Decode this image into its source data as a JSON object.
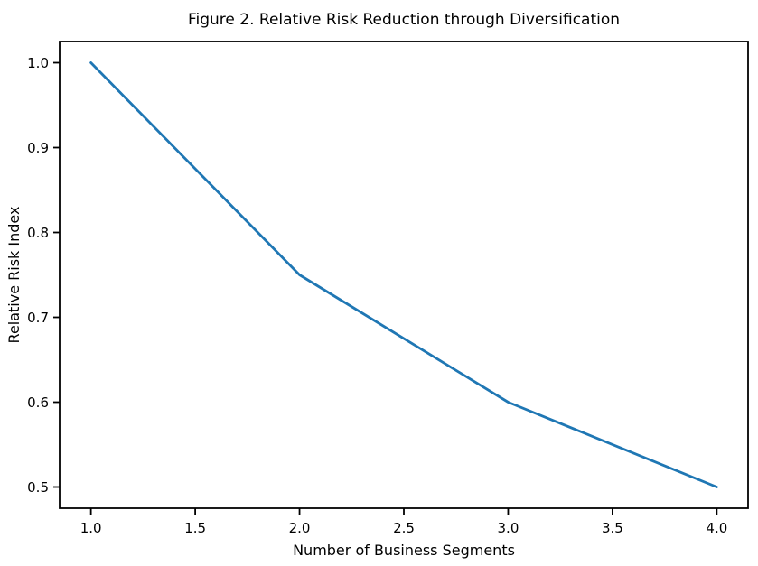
{
  "figure": {
    "background": "#ffffff"
  },
  "chart_data": {
    "type": "line",
    "title": "Figure 2. Relative Risk Reduction through Diversification",
    "xlabel": "Number of Business Segments",
    "ylabel": "Relative Risk Index",
    "x": [
      1,
      2,
      3,
      4
    ],
    "y": [
      1.0,
      0.75,
      0.6,
      0.5
    ],
    "xlim": [
      0.85,
      4.15
    ],
    "ylim": [
      0.475,
      1.025
    ],
    "x_ticks": [
      1.0,
      1.5,
      2.0,
      2.5,
      3.0,
      3.5,
      4.0
    ],
    "x_tick_labels": [
      "1.0",
      "1.5",
      "2.0",
      "2.5",
      "3.0",
      "3.5",
      "4.0"
    ],
    "y_ticks": [
      0.5,
      0.6,
      0.7,
      0.8,
      0.9,
      1.0
    ],
    "y_tick_labels": [
      "0.5",
      "0.6",
      "0.7",
      "0.8",
      "0.9",
      "1.0"
    ],
    "line_color": "#1f77b4",
    "axis_color": "#000000",
    "grid": false,
    "legend": false
  }
}
